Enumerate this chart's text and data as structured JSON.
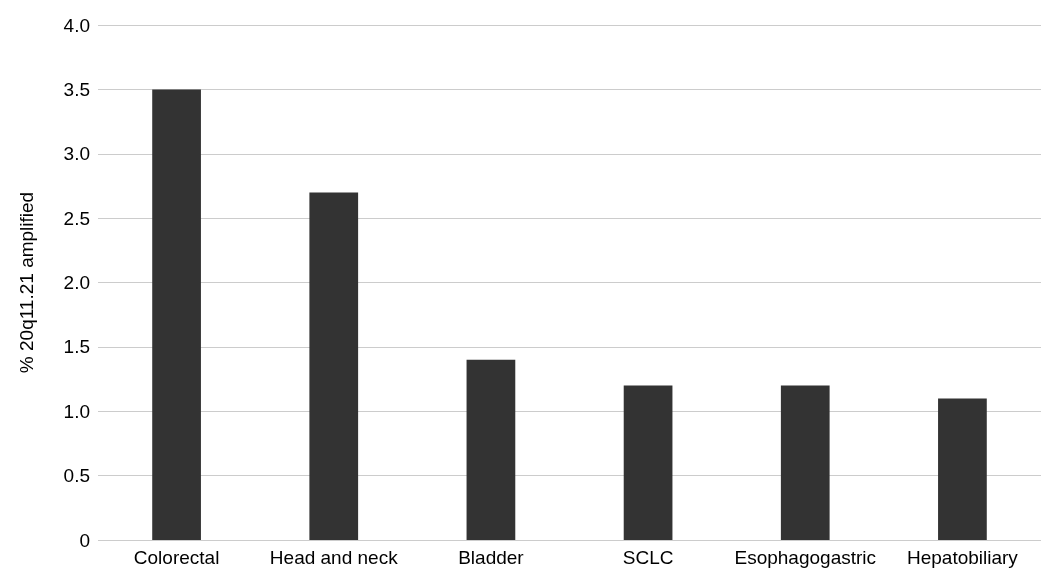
{
  "chart_data": {
    "type": "bar",
    "ylabel": "% 20q11.21 amplified",
    "categories": [
      "Colorectal",
      "Head and neck",
      "Bladder",
      "SCLC",
      "Esophagogastric",
      "Hepatobiliary"
    ],
    "values": [
      3.5,
      2.7,
      1.4,
      1.2,
      1.2,
      1.1
    ],
    "color": "#333333",
    "ylim": [
      0,
      4
    ],
    "yticks": [
      0,
      {
        "value": 0.5,
        "label": "0.5"
      },
      {
        "value": 1,
        "label": "1.0"
      },
      {
        "value": 1.5,
        "label": "1.5"
      },
      {
        "value": 2,
        "label": "2.0"
      },
      {
        "value": 2.5,
        "label": "2.5"
      },
      {
        "value": 3,
        "label": "3.0"
      },
      {
        "value": 3.5,
        "label": "3.5"
      },
      {
        "value": 4,
        "label": "4.0"
      }
    ],
    "grid": "y"
  }
}
